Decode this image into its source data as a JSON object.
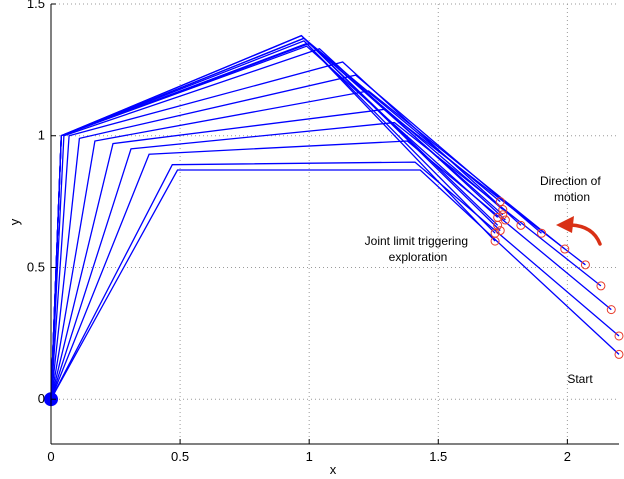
{
  "chart_data": {
    "type": "line",
    "title": "",
    "xlabel": "x",
    "ylabel": "y",
    "xlim": [
      0,
      2.2
    ],
    "ylim": [
      -0.17,
      1.5
    ],
    "x_ticks": [
      {
        "value": 0,
        "label": "0"
      },
      {
        "value": 0.5,
        "label": "0.5"
      },
      {
        "value": 1,
        "label": "1"
      },
      {
        "value": 1.5,
        "label": "1.5"
      },
      {
        "value": 2,
        "label": "2"
      }
    ],
    "y_ticks": [
      {
        "value": 0,
        "label": "0"
      },
      {
        "value": 0.5,
        "label": "0.5"
      },
      {
        "value": 1,
        "label": "1"
      },
      {
        "value": 1.5,
        "label": "1.5"
      }
    ],
    "grid": true,
    "colors": {
      "arm": "#0000ff",
      "end_effector": "#e83a2a",
      "arrow": "#d93015",
      "grid": "#9a9a9a"
    },
    "base": [
      0,
      0
    ],
    "arm_configurations": [
      [
        [
          0,
          0
        ],
        [
          0.49,
          0.87
        ],
        [
          1.43,
          0.87
        ],
        [
          2.2,
          0.17
        ]
      ],
      [
        [
          0,
          0
        ],
        [
          0.47,
          0.89
        ],
        [
          1.41,
          0.9
        ],
        [
          2.2,
          0.24
        ]
      ],
      [
        [
          0,
          0
        ],
        [
          0.38,
          0.93
        ],
        [
          1.38,
          0.98
        ],
        [
          2.17,
          0.34
        ]
      ],
      [
        [
          0,
          0
        ],
        [
          0.31,
          0.95
        ],
        [
          1.33,
          1.05
        ],
        [
          2.13,
          0.43
        ]
      ],
      [
        [
          0,
          0
        ],
        [
          0.24,
          0.97
        ],
        [
          1.29,
          1.1
        ],
        [
          2.07,
          0.51
        ]
      ],
      [
        [
          0,
          0
        ],
        [
          0.17,
          0.98
        ],
        [
          1.23,
          1.17
        ],
        [
          1.99,
          0.57
        ]
      ],
      [
        [
          0,
          0
        ],
        [
          0.11,
          0.99
        ],
        [
          1.18,
          1.23
        ],
        [
          1.9,
          0.63
        ]
      ],
      [
        [
          0,
          0
        ],
        [
          0.07,
          1.0
        ],
        [
          1.13,
          1.28
        ],
        [
          1.82,
          0.66
        ]
      ],
      [
        [
          0,
          0
        ],
        [
          0.05,
          1.0
        ],
        [
          1.04,
          1.33
        ],
        [
          1.76,
          0.68
        ]
      ],
      [
        [
          0,
          0
        ],
        [
          0.04,
          1.0
        ],
        [
          1.0,
          1.35
        ],
        [
          1.75,
          0.72
        ]
      ],
      [
        [
          0,
          0
        ],
        [
          0.04,
          1.0
        ],
        [
          0.98,
          1.37
        ],
        [
          1.74,
          0.75
        ]
      ],
      [
        [
          0,
          0
        ],
        [
          0.04,
          1.0
        ],
        [
          0.97,
          1.38
        ],
        [
          1.73,
          0.66
        ]
      ],
      [
        [
          0,
          0
        ],
        [
          0.04,
          1.0
        ],
        [
          0.98,
          1.36
        ],
        [
          1.72,
          0.63
        ]
      ],
      [
        [
          0,
          0
        ],
        [
          0.04,
          1.0
        ],
        [
          0.99,
          1.35
        ],
        [
          1.72,
          0.6
        ]
      ],
      [
        [
          0,
          0
        ],
        [
          0.04,
          1.0
        ],
        [
          0.99,
          1.34
        ],
        [
          1.73,
          0.69
        ]
      ],
      [
        [
          0,
          0
        ],
        [
          0.04,
          1.0
        ],
        [
          0.98,
          1.37
        ],
        [
          1.75,
          0.7
        ]
      ],
      [
        [
          0,
          0
        ],
        [
          0.04,
          1.0
        ],
        [
          0.97,
          1.38
        ],
        [
          1.74,
          0.64
        ]
      ]
    ],
    "annotations": {
      "joint_limit": [
        "Joint limit triggering",
        "exploration"
      ],
      "direction": [
        "Direction of",
        "motion"
      ],
      "start": "Start"
    }
  }
}
